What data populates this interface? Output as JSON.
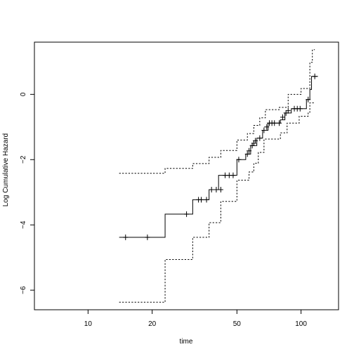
{
  "chart_data": {
    "type": "line",
    "title": "",
    "xlabel": "time",
    "ylabel": "Log Cumulative Hazard",
    "x_scale": "log",
    "xlim": [
      5.6,
      150
    ],
    "ylim": [
      -6.6,
      1.6
    ],
    "x_ticks": [
      10,
      20,
      50,
      100
    ],
    "y_ticks": [
      -6,
      -4,
      -2,
      0
    ],
    "grid": false,
    "legend": "none",
    "series": [
      {
        "line_style": "solid",
        "steps": [
          [
            14,
            -4.38
          ],
          [
            23,
            -3.67
          ],
          [
            31,
            -3.23
          ],
          [
            37,
            -2.92
          ],
          [
            41,
            -2.48
          ],
          [
            50,
            -2.0
          ],
          [
            55,
            -1.83
          ],
          [
            58,
            -1.57
          ],
          [
            62,
            -1.34
          ],
          [
            66,
            -1.1
          ],
          [
            70,
            -0.88
          ],
          [
            80,
            -0.78
          ],
          [
            84,
            -0.57
          ],
          [
            90,
            -0.44
          ],
          [
            106,
            -0.16
          ],
          [
            110,
            0.15
          ],
          [
            112,
            0.55
          ],
          [
            120,
            0.55
          ]
        ]
      },
      {
        "line_style": "dotted",
        "steps": [
          [
            14,
            -2.42
          ],
          [
            23,
            -2.27
          ],
          [
            31,
            -2.12
          ],
          [
            37,
            -1.93
          ],
          [
            42,
            -1.72
          ],
          [
            50,
            -1.4
          ],
          [
            56,
            -1.2
          ],
          [
            60,
            -0.95
          ],
          [
            64,
            -0.72
          ],
          [
            68,
            -0.47
          ],
          [
            79,
            -0.4
          ],
          [
            87,
            0.0
          ],
          [
            100,
            0.18
          ],
          [
            110,
            0.98
          ],
          [
            113,
            1.37
          ],
          [
            116,
            1.37
          ]
        ]
      },
      {
        "line_style": "dotted",
        "steps": [
          [
            14,
            -6.37
          ],
          [
            23,
            -5.06
          ],
          [
            31,
            -4.38
          ],
          [
            37,
            -3.93
          ],
          [
            42,
            -3.28
          ],
          [
            50,
            -2.63
          ],
          [
            57,
            -2.38
          ],
          [
            60,
            -2.11
          ],
          [
            63,
            -1.78
          ],
          [
            67,
            -1.37
          ],
          [
            80,
            -1.18
          ],
          [
            86,
            -0.88
          ],
          [
            98,
            -0.67
          ],
          [
            108,
            -0.55
          ],
          [
            110,
            -0.26
          ],
          [
            116,
            -0.26
          ]
        ]
      }
    ],
    "censor_marks": [
      [
        15,
        -4.38
      ],
      [
        19,
        -4.38
      ],
      [
        29,
        -3.67
      ],
      [
        33,
        -3.23
      ],
      [
        34,
        -3.23
      ],
      [
        36,
        -3.23
      ],
      [
        38,
        -2.92
      ],
      [
        40,
        -2.92
      ],
      [
        42,
        -2.92
      ],
      [
        44,
        -2.48
      ],
      [
        46,
        -2.48
      ],
      [
        48,
        -2.48
      ],
      [
        51,
        -2.0
      ],
      [
        56,
        -1.83
      ],
      [
        57,
        -1.73
      ],
      [
        59,
        -1.57
      ],
      [
        60,
        -1.5
      ],
      [
        61,
        -1.42
      ],
      [
        64,
        -1.34
      ],
      [
        67,
        -1.1
      ],
      [
        69,
        -1.0
      ],
      [
        71,
        -0.88
      ],
      [
        73,
        -0.88
      ],
      [
        75,
        -0.88
      ],
      [
        79,
        -0.88
      ],
      [
        82,
        -0.7
      ],
      [
        85,
        -0.57
      ],
      [
        87,
        -0.5
      ],
      [
        93,
        -0.44
      ],
      [
        96,
        -0.44
      ],
      [
        99,
        -0.44
      ],
      [
        108,
        -0.16
      ],
      [
        116,
        0.55
      ]
    ]
  }
}
